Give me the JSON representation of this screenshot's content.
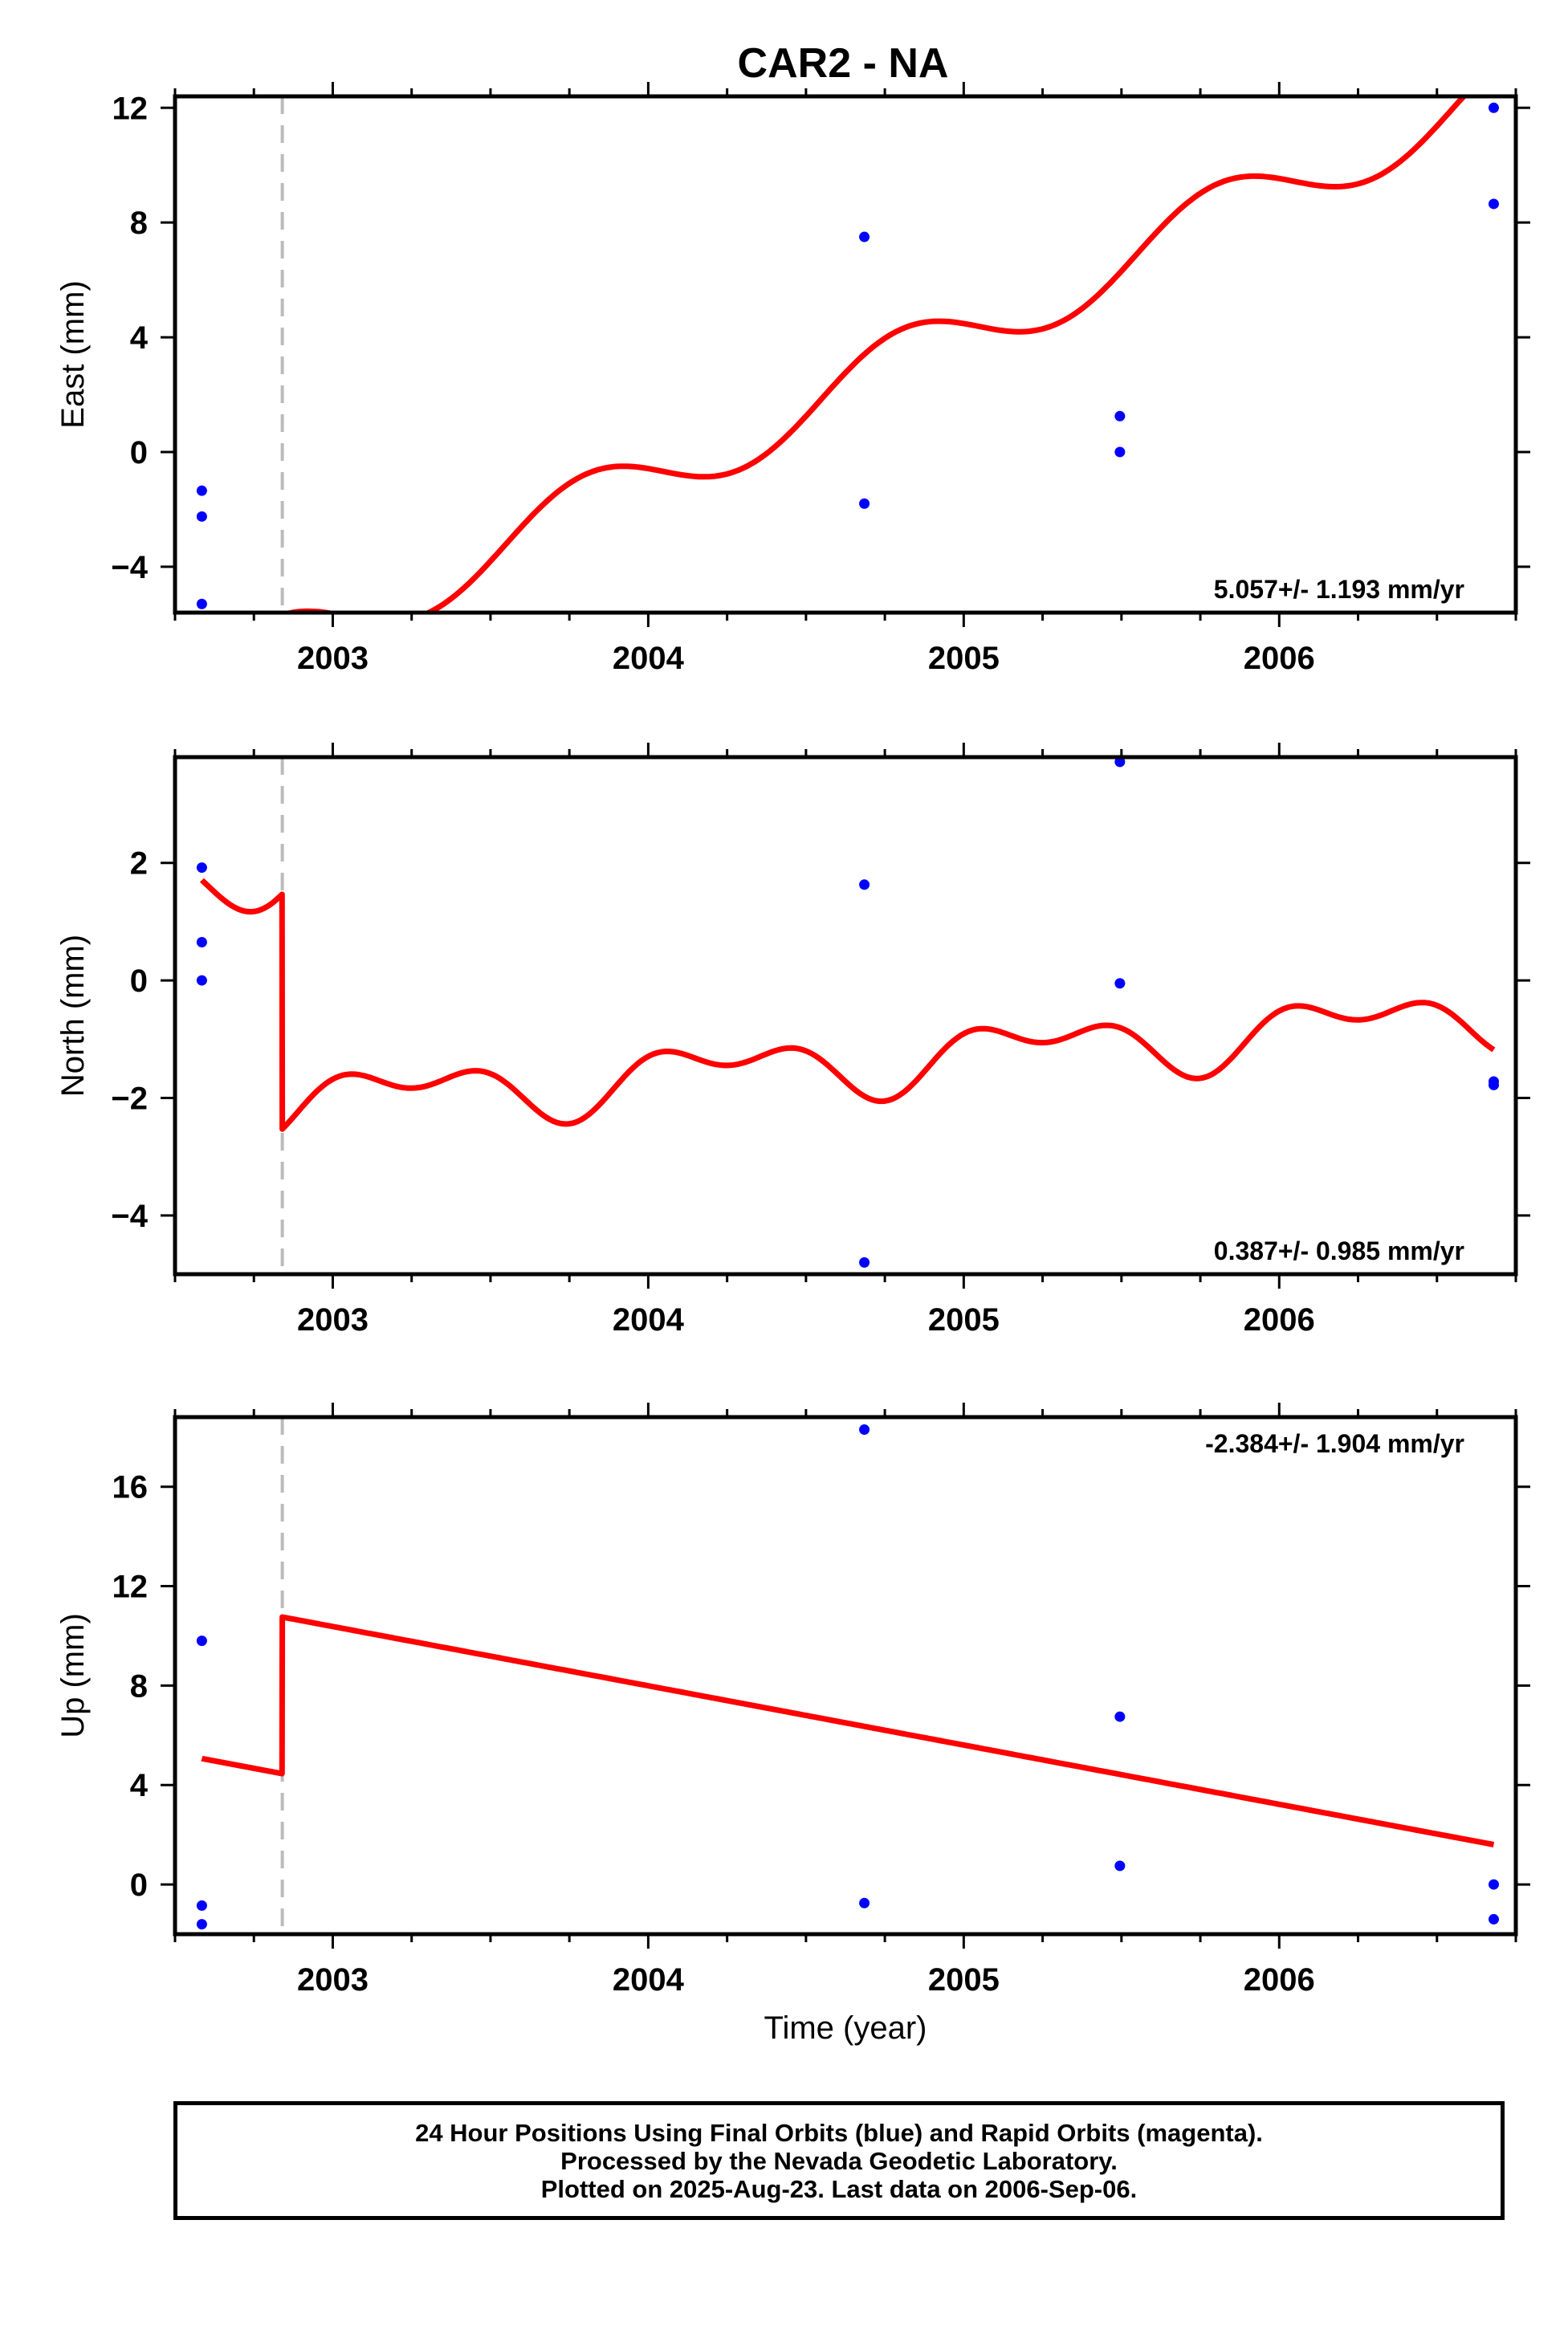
{
  "title": "CAR2 - NA",
  "colors": {
    "data_points": "#0000ff",
    "model_line": "#ff0000",
    "break_line": "#bbbbbb",
    "frame": "#000000"
  },
  "chart_data": [
    {
      "type": "scatter",
      "panel": "east",
      "title": "CAR2 - NA",
      "ylabel": "East (mm)",
      "xlabel": "",
      "xlim": [
        2002.5,
        2006.75
      ],
      "ylim": [
        -5.6,
        12.4
      ],
      "yticks": [
        -4,
        0,
        4,
        8,
        12
      ],
      "ytick_labels": [
        "−4",
        "0",
        "4",
        "8",
        "12"
      ],
      "xticks": [
        2003,
        2004,
        2005,
        2006
      ],
      "xtick_labels": [
        "2003",
        "2004",
        "2005",
        "2006"
      ],
      "rate": "5.057+/- 1.193 mm/yr",
      "rate_position": "bottom-right",
      "equipment_break": 2002.84,
      "points": [
        {
          "x": 2002.585,
          "y": -1.35
        },
        {
          "x": 2002.585,
          "y": -2.25
        },
        {
          "x": 2002.585,
          "y": -5.3
        },
        {
          "x": 2004.685,
          "y": 7.5
        },
        {
          "x": 2004.685,
          "y": -1.8
        },
        {
          "x": 2005.495,
          "y": 1.25
        },
        {
          "x": 2005.495,
          "y": 0.0
        },
        {
          "x": 2006.68,
          "y": 12.0
        },
        {
          "x": 2006.68,
          "y": 8.65
        }
      ],
      "model": {
        "segments": [
          {
            "from": 2002.585,
            "to": 2002.84,
            "offset": -2.45
          },
          {
            "from": 2002.84,
            "to": 2006.68,
            "offset": 1.6
          }
        ],
        "rate": 5.057,
        "ref_year": 2004.5,
        "annual_sin": 1.1,
        "annual_cos": -0.35,
        "semiannual_sin": 0.0,
        "semiannual_cos": 0.0
      }
    },
    {
      "type": "scatter",
      "panel": "north",
      "ylabel": "North (mm)",
      "xlabel": "",
      "xlim": [
        2002.5,
        2006.75
      ],
      "ylim": [
        -5.0,
        3.8
      ],
      "yticks": [
        -4,
        -2,
        0,
        2
      ],
      "ytick_labels": [
        "−4",
        "−2",
        "0",
        "2"
      ],
      "xticks": [
        2003,
        2004,
        2005,
        2006
      ],
      "xtick_labels": [
        "2003",
        "2004",
        "2005",
        "2006"
      ],
      "rate": "0.387+/- 0.985 mm/yr",
      "rate_position": "bottom-right",
      "equipment_break": 2002.84,
      "points": [
        {
          "x": 2002.585,
          "y": 1.92
        },
        {
          "x": 2002.585,
          "y": 0.65
        },
        {
          "x": 2002.585,
          "y": 0.0
        },
        {
          "x": 2004.685,
          "y": 1.63
        },
        {
          "x": 2004.685,
          "y": -4.8
        },
        {
          "x": 2005.495,
          "y": 3.72
        },
        {
          "x": 2005.495,
          "y": -0.05
        },
        {
          "x": 2006.68,
          "y": -1.72
        },
        {
          "x": 2006.68,
          "y": -1.78
        }
      ],
      "model": {
        "segments": [
          {
            "from": 2002.585,
            "to": 2002.84,
            "offset": 2.55
          },
          {
            "from": 2002.84,
            "to": 2006.68,
            "offset": -1.45
          }
        ],
        "rate": 0.387,
        "ref_year": 2004.5,
        "annual_sin": -0.4,
        "annual_cos": -0.05,
        "semiannual_sin": 0.0,
        "semiannual_cos": 0.3
      }
    },
    {
      "type": "scatter",
      "panel": "up",
      "ylabel": "Up (mm)",
      "xlabel": "Time (year)",
      "xlim": [
        2002.5,
        2006.75
      ],
      "ylim": [
        -2.0,
        18.8
      ],
      "yticks": [
        0,
        4,
        8,
        12,
        16
      ],
      "ytick_labels": [
        "0",
        "4",
        "8",
        "12",
        "16"
      ],
      "xticks": [
        2003,
        2004,
        2005,
        2006
      ],
      "xtick_labels": [
        "2003",
        "2004",
        "2005",
        "2006"
      ],
      "rate": "-2.384+/- 1.904 mm/yr",
      "rate_position": "top-right",
      "equipment_break": 2002.84,
      "points": [
        {
          "x": 2002.585,
          "y": 9.8
        },
        {
          "x": 2002.585,
          "y": -0.85
        },
        {
          "x": 2002.585,
          "y": -1.6
        },
        {
          "x": 2004.685,
          "y": 18.3
        },
        {
          "x": 2004.685,
          "y": -0.75
        },
        {
          "x": 2005.495,
          "y": 6.75
        },
        {
          "x": 2005.495,
          "y": 0.75
        },
        {
          "x": 2006.68,
          "y": 0.0
        },
        {
          "x": 2006.68,
          "y": -1.4
        }
      ],
      "model": {
        "segments": [
          {
            "from": 2002.585,
            "to": 2002.84,
            "offset": 0.5
          },
          {
            "from": 2002.84,
            "to": 2006.68,
            "offset": 6.8
          }
        ],
        "rate": -2.384,
        "ref_year": 2004.5,
        "annual_sin": 0.0,
        "annual_cos": 0.0,
        "semiannual_sin": 0.0,
        "semiannual_cos": 0.0
      }
    }
  ],
  "footer": {
    "line1": "24 Hour Positions Using Final Orbits (blue) and Rapid Orbits (magenta).",
    "line2": "Processed by the Nevada Geodetic Laboratory.",
    "line3": "Plotted on 2025-Aug-23. Last data on 2006-Sep-06."
  }
}
